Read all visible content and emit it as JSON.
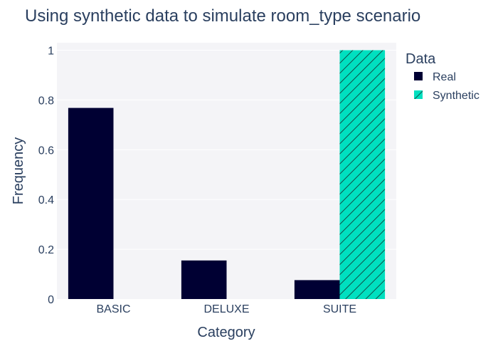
{
  "chart_data": {
    "type": "bar",
    "title": "Using synthetic data to simulate room_type scenario",
    "xlabel": "Category",
    "ylabel": "Frequency",
    "categories": [
      "BASIC",
      "DELUXE",
      "SUITE"
    ],
    "series": [
      {
        "name": "Real",
        "values": [
          0.768,
          0.155,
          0.076
        ],
        "color": "#000033",
        "pattern": "solid"
      },
      {
        "name": "Synthetic",
        "values": [
          0,
          0,
          1.0
        ],
        "color": "#00e0c0",
        "pattern": "diagonal-hatch"
      }
    ],
    "ylim": [
      0,
      1.03
    ],
    "yticks": [
      {
        "value": 0,
        "label": "0"
      },
      {
        "value": 0.2,
        "label": "0.2"
      },
      {
        "value": 0.4,
        "label": "0.4"
      },
      {
        "value": 0.6,
        "label": "0.6"
      },
      {
        "value": 0.8,
        "label": "0.8"
      },
      {
        "value": 1,
        "label": "1"
      }
    ],
    "legend": {
      "title": "Data",
      "placement": "right"
    },
    "grid": true,
    "colors": {
      "plot_background": "#f4f4f7",
      "grid": "#ffffff",
      "text": "#2a3f5f"
    }
  }
}
